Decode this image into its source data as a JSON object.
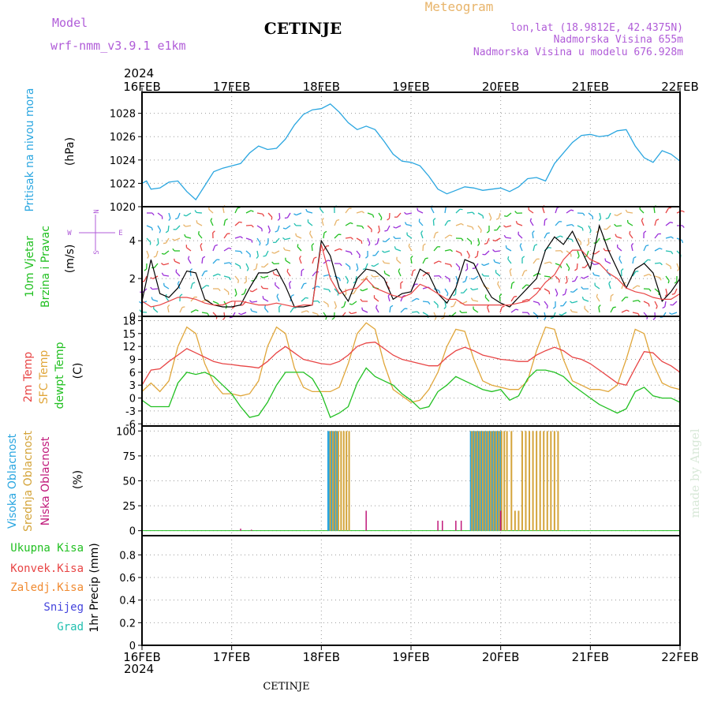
{
  "header": {
    "model_label": "Model",
    "model_name": "wrf-nmm_v3.9.1 e1km",
    "station": "CETINJE",
    "meteogram_label": "Meteogram",
    "coords": "lon,lat (18.9812E, 42.4375N)",
    "altitude": "Nadmorska Visina 655m",
    "model_altitude": "Nadmorska Visina u modelu 676.928m"
  },
  "footer": {
    "station": "CETINJE",
    "credit": "made by Angel"
  },
  "axis": {
    "year_top": "2024",
    "year_bottom": "2024",
    "dates": [
      "16FEB",
      "17FEB",
      "18FEB",
      "19FEB",
      "20FEB",
      "21FEB",
      "22FEB"
    ]
  },
  "panel_labels": {
    "pressure": {
      "name": "Pritisak na nivou mora",
      "unit": "(hPa)"
    },
    "wind": {
      "name1": "10m Vjetar",
      "name2": "Brzina i Pravac",
      "unit": "(m/s)",
      "compass_w": "W",
      "compass_e": "E",
      "compass_n": "N",
      "compass_s": "S"
    },
    "temp": {
      "name1": "2m Temp",
      "name2": "SFC Temp",
      "name3": "dewpt Temp",
      "unit": "(C)"
    },
    "cloud": {
      "name1": "Visoka Oblacnost",
      "name2": "Srednja Oblacnost",
      "name3": "Niska Oblacnost",
      "unit": "(%)"
    },
    "precip": {
      "l1": "Ukupna Kisa",
      "l2": "Konvek.Kisa",
      "l3": "Zaledj.Kisa",
      "l4": "Snijeg",
      "l5": "Grad",
      "unit": "1hr Precip (mm)"
    }
  },
  "colors": {
    "pressure": "#2aa6e0",
    "temp2m": "#e84545",
    "sfc": "#e0a63a",
    "dewpt": "#22c022",
    "high_cloud": "#2aa6e0",
    "mid_cloud": "#d4a43a",
    "low_cloud": "#c0187a",
    "model_label": "#b05cd8",
    "title_orange": "#e8b46a",
    "label_green": "#22c022",
    "label_red": "#e84545",
    "label_orange": "#f08a30",
    "label_blue": "#4444dd",
    "label_cyan": "#22c0b0"
  },
  "chart_data": [
    {
      "type": "line",
      "panel": "pressure",
      "ylabel": "(hPa)",
      "ylim": [
        1020,
        1029.8
      ],
      "yticks": [
        "1020",
        "1022",
        "1024",
        "1026",
        "1028"
      ],
      "x_days": [
        0,
        0.05,
        0.1,
        0.2,
        0.3,
        0.4,
        0.5,
        0.6,
        0.7,
        0.8,
        0.9,
        1.0,
        1.1,
        1.2,
        1.3,
        1.4,
        1.5,
        1.6,
        1.7,
        1.8,
        1.9,
        2.0,
        2.1,
        2.2,
        2.3,
        2.4,
        2.5,
        2.6,
        2.7,
        2.8,
        2.9,
        3.0,
        3.1,
        3.2,
        3.3,
        3.4,
        3.5,
        3.6,
        3.7,
        3.8,
        3.9,
        4.0,
        4.1,
        4.2,
        4.3,
        4.4,
        4.5,
        4.6,
        4.7,
        4.8,
        4.9,
        5.0,
        5.1,
        5.2,
        5.3,
        5.4,
        5.5,
        5.6,
        5.7,
        5.8,
        5.9,
        6.0
      ],
      "values": [
        1022,
        1022.2,
        1021.5,
        1021.6,
        1022.1,
        1022.2,
        1021.3,
        1020.6,
        1021.8,
        1023,
        1023.3,
        1023.5,
        1023.7,
        1024.6,
        1025.2,
        1024.9,
        1025,
        1025.8,
        1027,
        1027.9,
        1028.3,
        1028.4,
        1028.8,
        1028.1,
        1027.2,
        1026.6,
        1026.9,
        1026.6,
        1025.6,
        1024.5,
        1023.9,
        1023.8,
        1023.5,
        1022.6,
        1021.5,
        1021.1,
        1021.4,
        1021.7,
        1021.6,
        1021.4,
        1021.5,
        1021.6,
        1021.3,
        1021.7,
        1022.4,
        1022.5,
        1022.2,
        1023.7,
        1024.6,
        1025.5,
        1026.1,
        1026.2,
        1026,
        1026.1,
        1026.5,
        1026.6,
        1025.2,
        1024.2,
        1023.8,
        1024.8,
        1024.5,
        1023.9
      ]
    },
    {
      "type": "line",
      "panel": "wind",
      "ylabel": "(m/s)",
      "ylim": [
        0,
        5.8
      ],
      "yticks": [
        "0",
        "2",
        "4"
      ],
      "x_days": [
        0,
        0.1,
        0.2,
        0.3,
        0.4,
        0.5,
        0.6,
        0.7,
        0.8,
        0.9,
        1.0,
        1.1,
        1.2,
        1.3,
        1.4,
        1.5,
        1.6,
        1.7,
        1.8,
        1.9,
        2.0,
        2.1,
        2.2,
        2.3,
        2.4,
        2.5,
        2.6,
        2.7,
        2.8,
        2.9,
        3.0,
        3.1,
        3.2,
        3.3,
        3.4,
        3.5,
        3.6,
        3.7,
        3.8,
        3.9,
        4.0,
        4.1,
        4.2,
        4.3,
        4.4,
        4.5,
        4.6,
        4.7,
        4.8,
        4.9,
        5.0,
        5.1,
        5.2,
        5.3,
        5.4,
        5.5,
        5.6,
        5.7,
        5.8,
        5.9,
        6.0
      ],
      "series": [
        {
          "name": "black",
          "values": [
            0.8,
            3,
            1.2,
            1,
            1.5,
            2.4,
            2.3,
            0.9,
            0.6,
            0.5,
            0.5,
            0.6,
            1.5,
            2.3,
            2.3,
            2.5,
            1.6,
            0.5,
            0.5,
            0.6,
            4,
            3.2,
            1.5,
            0.8,
            2,
            2.5,
            2.4,
            2,
            0.9,
            1.2,
            1.3,
            2.5,
            2.2,
            1.2,
            0.7,
            1.5,
            3,
            2.8,
            1.8,
            1,
            0.7,
            0.5,
            1,
            1.5,
            2,
            3.5,
            4.2,
            3.8,
            4.5,
            3.5,
            2.5,
            4.8,
            3.5,
            2.5,
            1.5,
            2.5,
            2.8,
            2.3,
            0.8,
            1.3,
            2
          ]
        },
        {
          "name": "red",
          "values": [
            0.8,
            0.5,
            0.6,
            0.8,
            1,
            1,
            0.9,
            0.7,
            0.6,
            0.6,
            0.8,
            0.8,
            0.7,
            0.6,
            0.6,
            0.7,
            0.6,
            0.5,
            0.6,
            0.6,
            3.8,
            2,
            1.2,
            1.4,
            1.5,
            2,
            1.5,
            1.3,
            1.1,
            1,
            1.2,
            1.7,
            1.5,
            1.2,
            0.9,
            0.9,
            0.6,
            0.6,
            0.6,
            0.6,
            0.6,
            0.6,
            0.7,
            0.8,
            1.2,
            1.8,
            2.2,
            3,
            3.5,
            3.5,
            3,
            2.8,
            2.3,
            2,
            1.5,
            1.3,
            1.2,
            1,
            0.9,
            0.9,
            1.2
          ]
        }
      ]
    },
    {
      "type": "line",
      "panel": "temperature",
      "ylabel": "(C)",
      "ylim": [
        -6.5,
        19
      ],
      "yticks": [
        "-6",
        "-3",
        "0",
        "3",
        "6",
        "9",
        "12",
        "15",
        "18"
      ],
      "x_days": [
        0,
        0.1,
        0.2,
        0.3,
        0.4,
        0.5,
        0.6,
        0.7,
        0.8,
        0.9,
        1.0,
        1.1,
        1.2,
        1.3,
        1.4,
        1.5,
        1.6,
        1.7,
        1.8,
        1.9,
        2.0,
        2.1,
        2.2,
        2.3,
        2.4,
        2.5,
        2.6,
        2.7,
        2.8,
        2.9,
        3.0,
        3.1,
        3.2,
        3.3,
        3.4,
        3.5,
        3.6,
        3.7,
        3.8,
        3.9,
        4.0,
        4.1,
        4.2,
        4.3,
        4.4,
        4.5,
        4.6,
        4.7,
        4.8,
        4.9,
        5.0,
        5.1,
        5.2,
        5.3,
        5.4,
        5.5,
        5.6,
        5.7,
        5.8,
        5.9,
        6.0
      ],
      "series": [
        {
          "name": "2m Temp",
          "values": [
            3,
            6.5,
            6.8,
            8.5,
            10,
            11.5,
            10.5,
            9.5,
            8.5,
            8,
            7.8,
            7.5,
            7.3,
            7,
            8.5,
            10.5,
            12,
            10.5,
            9,
            8.5,
            8,
            7.8,
            8.5,
            10,
            12,
            12.8,
            13,
            11.5,
            10,
            9,
            8.5,
            8,
            7.5,
            7.5,
            9.5,
            11,
            11.8,
            11,
            10,
            9.5,
            9,
            8.8,
            8.5,
            8.5,
            10,
            11,
            11.8,
            11,
            9.5,
            9,
            8,
            6.5,
            5,
            3.5,
            3,
            7,
            10.8,
            10.5,
            8.5,
            7.5,
            6
          ]
        },
        {
          "name": "SFC Temp",
          "values": [
            1.5,
            3.5,
            1.5,
            4,
            12,
            16.5,
            15,
            8,
            3.5,
            1,
            1,
            0.5,
            1,
            4,
            12,
            16.5,
            15,
            7,
            2.5,
            1.5,
            1.5,
            1.5,
            2.5,
            8,
            15,
            17.5,
            16,
            8,
            2,
            0.5,
            -1,
            -0.5,
            2,
            6,
            12,
            16,
            15.5,
            9,
            4,
            3,
            2.5,
            2,
            2,
            4,
            11,
            16.5,
            16,
            9,
            4,
            3,
            2,
            2,
            1.5,
            3,
            9,
            16,
            15,
            8,
            3.5,
            2.5,
            2
          ]
        },
        {
          "name": "dewpt Temp",
          "values": [
            -0.5,
            -2,
            -2,
            -2,
            3.5,
            6,
            5.5,
            6,
            5,
            3,
            1,
            -2,
            -4.5,
            -4,
            -1,
            3,
            6,
            6,
            6,
            4.5,
            1,
            -4.5,
            -3.5,
            -2,
            3.5,
            7,
            5,
            4,
            3,
            1,
            -0.5,
            -2.5,
            -2,
            1.5,
            3,
            5,
            4,
            3,
            2,
            1.5,
            2,
            -0.5,
            0.5,
            4.5,
            6.5,
            6.5,
            6,
            5,
            3,
            1.5,
            0,
            -1.5,
            -2.5,
            -3.5,
            -2.5,
            1.5,
            2.5,
            0.5,
            0,
            0,
            -1
          ]
        }
      ]
    },
    {
      "type": "bar",
      "panel": "cloud",
      "ylabel": "(%)",
      "ylim": [
        -5,
        105
      ],
      "yticks": [
        "0",
        "25",
        "50",
        "75",
        "100"
      ],
      "series": [
        {
          "name": "Visoka Oblacnost",
          "x_days": [
            2.08,
            2.11,
            2.14,
            2.17,
            3.67,
            3.7,
            3.73,
            3.76,
            3.79,
            3.82,
            3.85,
            3.88,
            3.91,
            3.94,
            3.97,
            4.0
          ],
          "values": [
            100,
            100,
            100,
            100,
            100,
            100,
            100,
            100,
            100,
            100,
            100,
            100,
            100,
            100,
            100,
            100
          ]
        },
        {
          "name": "Srednja Oblacnost",
          "x_days": [
            2.1,
            2.13,
            2.16,
            2.19,
            2.22,
            2.25,
            2.28,
            2.31,
            3.68,
            3.71,
            3.74,
            3.77,
            3.8,
            3.83,
            3.86,
            3.89,
            3.92,
            3.95,
            3.98,
            4.01,
            4.04,
            4.07,
            4.12,
            4.16,
            4.2,
            4.24,
            4.28,
            4.32,
            4.36,
            4.4,
            4.44,
            4.48,
            4.52,
            4.56,
            4.6,
            4.64
          ],
          "values": [
            100,
            100,
            100,
            100,
            100,
            100,
            100,
            100,
            100,
            100,
            100,
            100,
            100,
            100,
            100,
            100,
            100,
            100,
            100,
            100,
            100,
            100,
            100,
            20,
            20,
            100,
            100,
            100,
            100,
            100,
            100,
            100,
            100,
            100,
            100,
            100
          ]
        },
        {
          "name": "Niska Oblacnost",
          "x_days": [
            1.1,
            1.22,
            2.5,
            3.3,
            3.35,
            3.5,
            3.56,
            4.0
          ],
          "values": [
            2,
            1,
            20,
            10,
            10,
            10,
            10,
            20
          ]
        }
      ]
    },
    {
      "type": "line",
      "panel": "precipitation",
      "ylabel": "1hr Precip (mm)",
      "ylim": [
        0,
        0.97
      ],
      "yticks": [
        "0",
        "0.2",
        "0.4",
        "0.6",
        "0.8"
      ],
      "series": [
        {
          "name": "Ukupna Kisa",
          "values": [
            0,
            0,
            0,
            0,
            0,
            0,
            0
          ]
        }
      ]
    }
  ]
}
